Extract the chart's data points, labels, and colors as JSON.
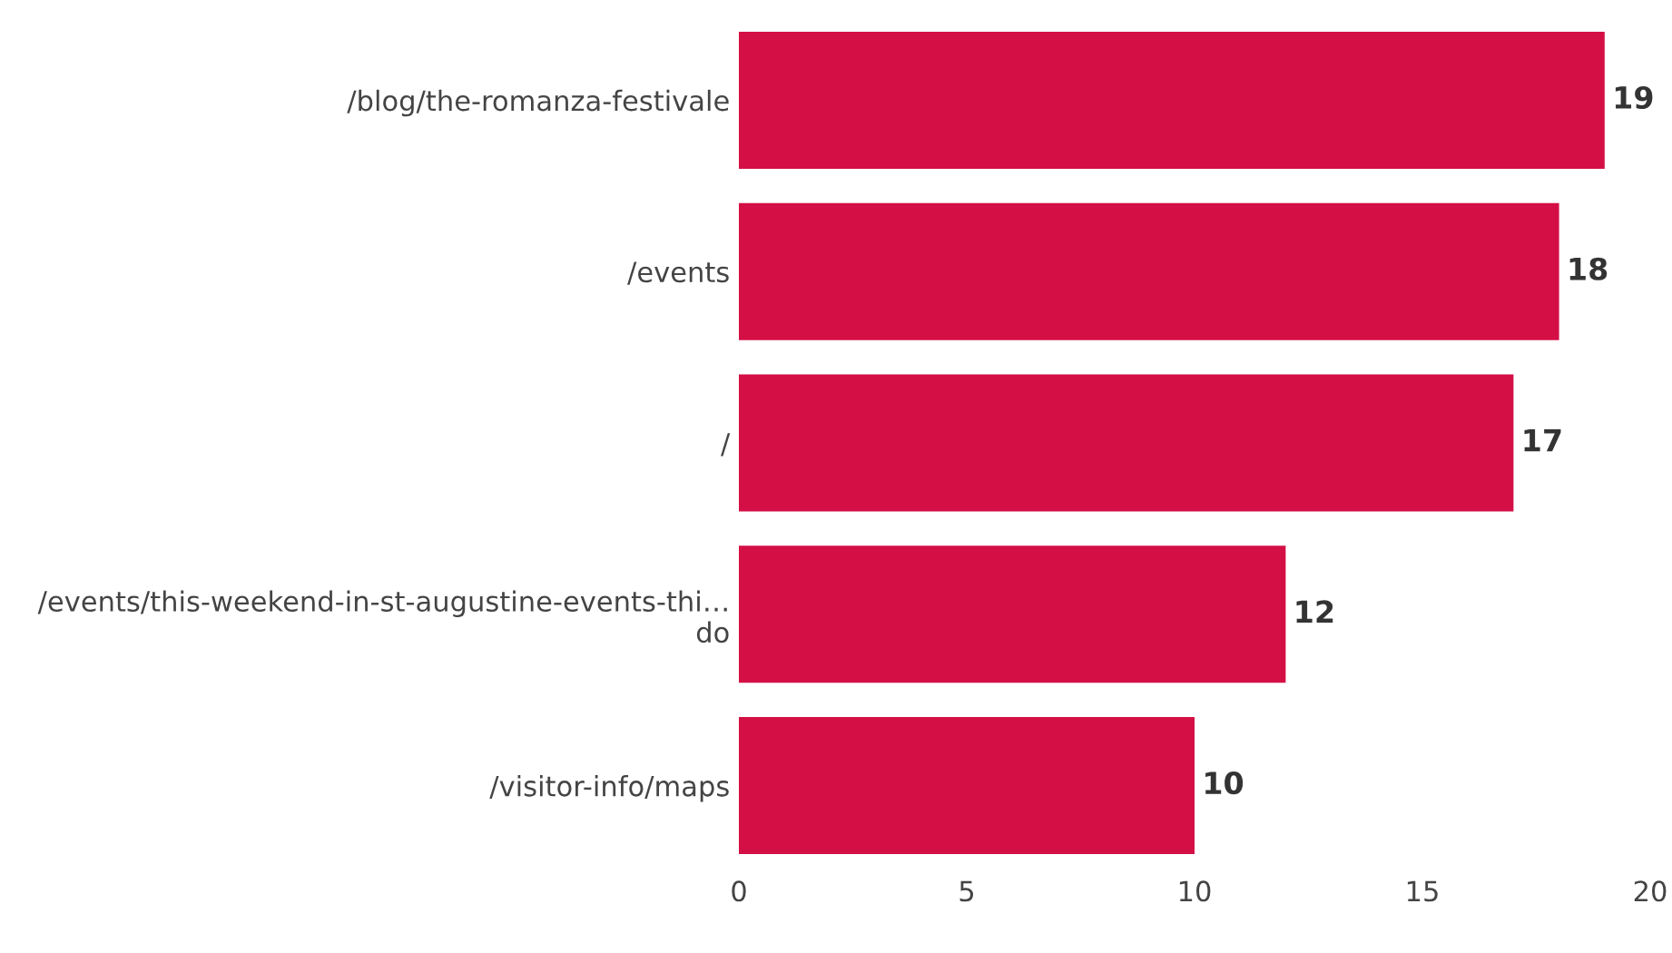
{
  "chart_data": {
    "type": "bar",
    "orientation": "horizontal",
    "categories": [
      "/blog/the-romanza-festivale",
      "/events",
      "/",
      "/events/this-weekend-in-st-augustine-events-thi…\ndo",
      "/visitor-info/maps"
    ],
    "values": [
      19,
      18,
      17,
      12,
      10
    ],
    "color": "#d40f45",
    "xlim": [
      0,
      20
    ],
    "xticks": [
      0,
      5,
      10,
      15,
      20
    ],
    "grid": false,
    "data_labels": true
  }
}
